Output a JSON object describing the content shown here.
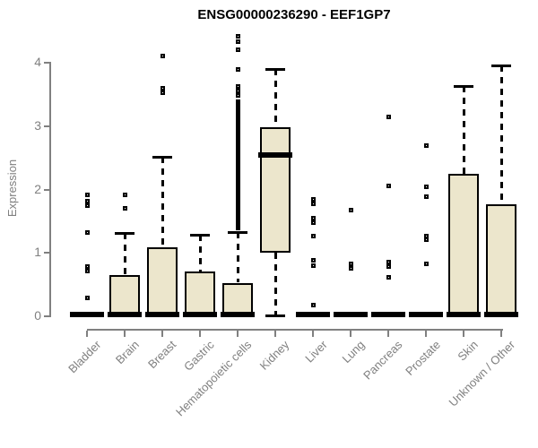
{
  "title": "ENSG00000236290 - EEF1GP7",
  "colors": {
    "box_fill": "#ECE6CC",
    "box_border": "#000000",
    "median": "#000000",
    "whisker": "#000000",
    "axis": "#808080",
    "tick_label": "#808080",
    "title": "#000000",
    "background": "#ffffff"
  },
  "y_axis": {
    "label": "Expression",
    "tick_labels": [
      "0",
      "1",
      "2",
      "3",
      "4"
    ]
  },
  "x_axis": {
    "tick_labels": [
      "Bladder",
      "Brain",
      "Breast",
      "Gastric",
      "Hematopoietic cells",
      "Kidney",
      "Liver",
      "Lung",
      "Pancreas",
      "Prostate",
      "Skin",
      "Unknown / Other"
    ]
  },
  "chart_data": {
    "type": "boxplot",
    "title": "ENSG00000236290 - EEF1GP7",
    "xlabel": "",
    "ylabel": "Expression",
    "ylim": [
      0,
      4
    ],
    "grid": false,
    "legend": "none",
    "categories": [
      "Bladder",
      "Brain",
      "Breast",
      "Gastric",
      "Hematopoietic cells",
      "Kidney",
      "Liver",
      "Lung",
      "Pancreas",
      "Prostate",
      "Skin",
      "Unknown / Other"
    ],
    "boxes": [
      {
        "category": "Bladder",
        "q1": 0,
        "median": 0,
        "q3": 0,
        "whisker_low": 0,
        "whisker_high": 0,
        "outliers": [
          1.91,
          1.82,
          1.74,
          1.32,
          0.78,
          0.71,
          0.29
        ]
      },
      {
        "category": "Brain",
        "q1": 0,
        "median": 0,
        "q3": 0.65,
        "whisker_low": 0,
        "whisker_high": 1.31,
        "outliers": [
          1.91,
          1.71
        ]
      },
      {
        "category": "Breast",
        "q1": 0,
        "median": 0,
        "q3": 1.09,
        "whisker_low": 0,
        "whisker_high": 2.52,
        "outliers": [
          4.1,
          3.6,
          3.52
        ]
      },
      {
        "category": "Gastric",
        "q1": 0,
        "median": 0,
        "q3": 0.7,
        "whisker_low": 0,
        "whisker_high": 1.28,
        "outliers": []
      },
      {
        "category": "Hematopoietic cells",
        "q1": 0,
        "median": 0,
        "q3": 0.53,
        "whisker_low": 0,
        "whisker_high": 1.33,
        "outliers": [
          4.42,
          4.33,
          4.2,
          3.9,
          3.62,
          3.55,
          3.48
        ],
        "dense_outliers": {
          "from": 1.36,
          "to": 3.42,
          "step": 0.02
        }
      },
      {
        "category": "Kidney",
        "q1": 1.01,
        "median": 2.52,
        "q3": 2.98,
        "whisker_low": 0.02,
        "whisker_high": 3.9,
        "outliers": []
      },
      {
        "category": "Liver",
        "q1": 0,
        "median": 0,
        "q3": 0,
        "whisker_low": 0,
        "whisker_high": 0,
        "outliers": [
          1.85,
          1.78,
          1.55,
          1.48,
          1.27,
          0.88,
          0.8,
          0.18
        ]
      },
      {
        "category": "Lung",
        "q1": 0,
        "median": 0,
        "q3": 0,
        "whisker_low": 0,
        "whisker_high": 0,
        "outliers": [
          1.67,
          0.82,
          0.76
        ]
      },
      {
        "category": "Pancreas",
        "q1": 0,
        "median": 0,
        "q3": 0,
        "whisker_low": 0,
        "whisker_high": 0,
        "outliers": [
          3.15,
          2.06,
          0.85,
          0.79,
          0.61
        ]
      },
      {
        "category": "Prostate",
        "q1": 0,
        "median": 0,
        "q3": 0,
        "whisker_low": 0,
        "whisker_high": 0,
        "outliers": [
          2.69,
          2.04,
          1.88,
          1.27,
          1.21,
          0.83
        ]
      },
      {
        "category": "Skin",
        "q1": 0,
        "median": 0,
        "q3": 2.25,
        "whisker_low": 0,
        "whisker_high": 3.63,
        "outliers": []
      },
      {
        "category": "Unknown / Other",
        "q1": 0,
        "median": 0,
        "q3": 1.77,
        "whisker_low": 0,
        "whisker_high": 3.96,
        "outliers": []
      }
    ]
  }
}
